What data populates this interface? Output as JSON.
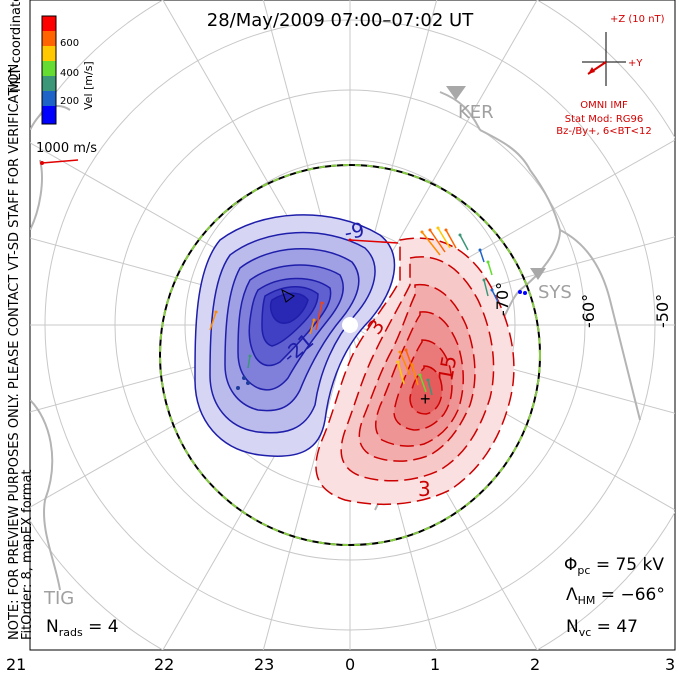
{
  "title": "28/May/2009 07:00–07:02 UT",
  "colorbar": {
    "label": "Vel [m/s]",
    "coords_label": "MLT coordinates",
    "ticks": [
      "600",
      "400",
      "200"
    ],
    "colors": [
      "#ff0000",
      "#ff6400",
      "#ffc800",
      "#64dc32",
      "#3c9678",
      "#1e64c8",
      "#0000ff"
    ]
  },
  "scale_vector": {
    "label": "1000 m/s",
    "color": "#e00000"
  },
  "note": {
    "line1": "NOTE: FOR PREVIEW PURPOSES ONLY. PLEASE CONTACT VT-SD STAFF FOR VERIFICATION.",
    "line2": "FitOrder: 8, mapEX format"
  },
  "imf": {
    "z_label": "+Z (10 nT)",
    "y_label": "+Y",
    "source": "OMNI IMF",
    "model_line1": "Stat Mod: RG96",
    "model_line2": "Bz-/By+, 6<BT<12",
    "color": "#d40000"
  },
  "stations": [
    "KER",
    "SYS",
    "TIG"
  ],
  "latitude_labels": [
    "-50°",
    "-60°",
    "-70°"
  ],
  "mlt_labels": [
    "21",
    "22",
    "23",
    "0",
    "1",
    "2",
    "3"
  ],
  "contours": {
    "negative": [
      "-9",
      "-21"
    ],
    "positive": [
      "3",
      "15",
      "3"
    ],
    "negative_color": "#1e1eaa",
    "positive_color": "#cc0000"
  },
  "stats": {
    "phi_pc": "Φpc = 75 kV",
    "phi_sym": "Φ",
    "phi_sub": "pc",
    "phi_val": " = 75 kV",
    "lambda_sym": "Λ",
    "lambda_sub": "HM",
    "lambda_val": " = −66°",
    "nvc_sym": "N",
    "nvc_sub": "vc",
    "nvc_val": " = 47",
    "nrads_sym": "N",
    "nrads_sub": "rads",
    "nrads_val": " = 4"
  }
}
